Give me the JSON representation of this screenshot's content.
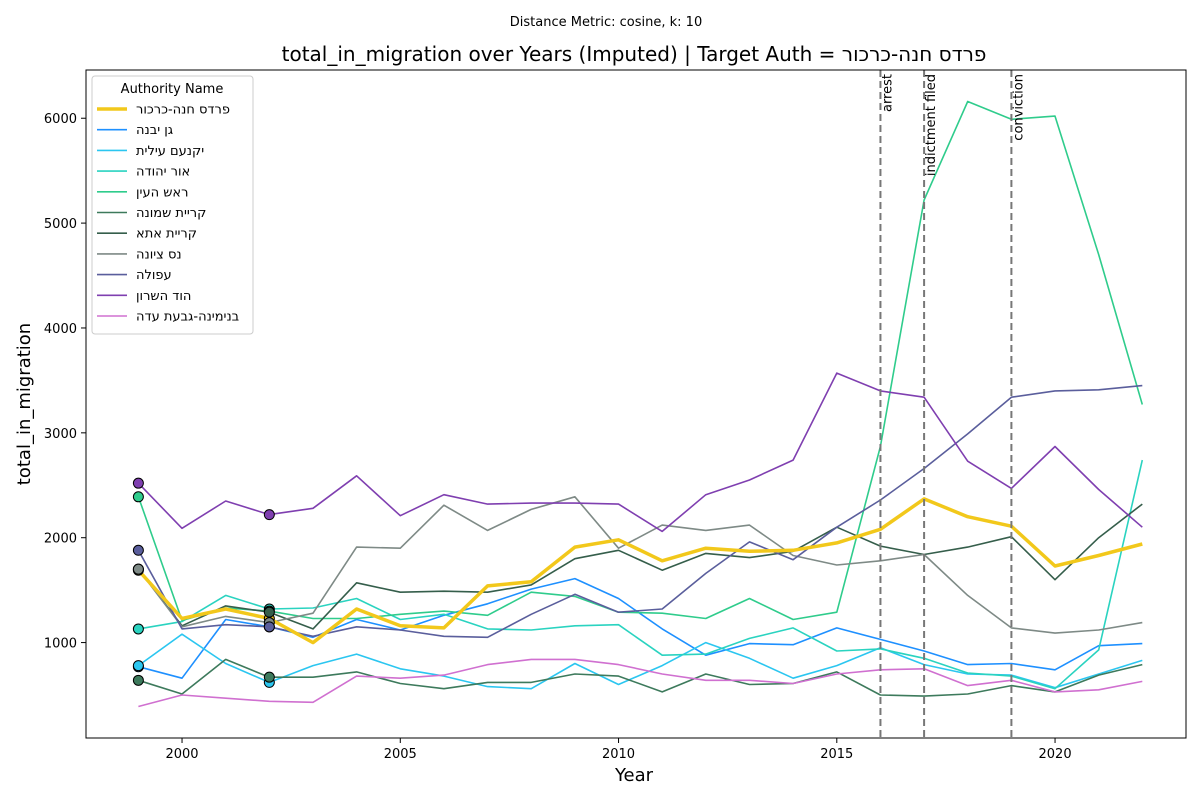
{
  "chart_data": {
    "type": "line",
    "suptitle": "Distance Metric: cosine, k: 10",
    "title": "total_in_migration over Years (Imputed) | Target Auth = פרדס חנה-כרכור",
    "xlabel": "Year",
    "ylabel": "total_in_migration",
    "xlim": [
      1997.8,
      2023.0
    ],
    "ylim": [
      90,
      6460
    ],
    "xticks": [
      2000,
      2005,
      2010,
      2015,
      2020
    ],
    "yticks": [
      1000,
      2000,
      3000,
      4000,
      5000,
      6000
    ],
    "legend_title": "Authority Name",
    "legend_position": "top-left",
    "events": [
      {
        "year": 2016,
        "label": "arrest"
      },
      {
        "year": 2017,
        "label": "indictment filed"
      },
      {
        "year": 2019,
        "label": "conviction"
      }
    ],
    "x": [
      1999,
      2000,
      2001,
      2002,
      2003,
      2004,
      2005,
      2006,
      2007,
      2008,
      2009,
      2010,
      2011,
      2012,
      2013,
      2014,
      2015,
      2016,
      2017,
      2018,
      2019,
      2020,
      2021,
      2022
    ],
    "series": [
      {
        "name": "פרדס חנה-כרכור",
        "color": "#f2c81b",
        "target": true,
        "imputed_years": [
          1999,
          2002
        ],
        "values": [
          1690,
          1230,
          1320,
          1230,
          1000,
          1320,
          1160,
          1140,
          1540,
          1580,
          1910,
          1980,
          1780,
          1900,
          1870,
          1880,
          1950,
          2080,
          2370,
          2200,
          2110,
          1730,
          1830,
          1940
        ]
      },
      {
        "name": "גן יבנה",
        "color": "#1e90ff",
        "target": false,
        "imputed_years": [
          1999,
          2002
        ],
        "values": [
          770,
          660,
          1220,
          1150,
          1050,
          1220,
          1120,
          1260,
          1370,
          1510,
          1610,
          1420,
          1130,
          880,
          990,
          980,
          1140,
          1030,
          920,
          790,
          800,
          740,
          970,
          990
        ]
      },
      {
        "name": "יקנעם עילית",
        "color": "#2bc6f0",
        "target": false,
        "imputed_years": [
          1999,
          2002
        ],
        "values": [
          780,
          1080,
          800,
          620,
          780,
          890,
          750,
          680,
          580,
          560,
          800,
          600,
          780,
          1000,
          850,
          660,
          780,
          950,
          790,
          700,
          690,
          570,
          700,
          830
        ]
      },
      {
        "name": "אור יהודה",
        "color": "#2ad3c0",
        "target": false,
        "imputed_years": [
          1999,
          2002
        ],
        "values": [
          1130,
          1200,
          1450,
          1320,
          1330,
          1420,
          1220,
          1270,
          1130,
          1120,
          1160,
          1170,
          880,
          890,
          1040,
          1140,
          920,
          940,
          850,
          710,
          680,
          560,
          930,
          2740
        ]
      },
      {
        "name": "ראש העין",
        "color": "#2fcc8c",
        "target": false,
        "imputed_years": [
          1999,
          2002
        ],
        "values": [
          2390,
          1210,
          1330,
          1300,
          1230,
          1230,
          1270,
          1300,
          1260,
          1480,
          1440,
          1290,
          1280,
          1230,
          1420,
          1220,
          1290,
          2870,
          5220,
          6160,
          5990,
          6020,
          4700,
          3270
        ]
      },
      {
        "name": "קריית שמונה",
        "color": "#3d7a5c",
        "target": false,
        "imputed_years": [
          1999,
          2002
        ],
        "values": [
          640,
          510,
          840,
          670,
          670,
          720,
          610,
          560,
          620,
          620,
          700,
          680,
          530,
          700,
          600,
          610,
          720,
          500,
          490,
          510,
          590,
          530,
          690,
          790
        ]
      },
      {
        "name": "קריית אתא",
        "color": "#355e4b",
        "target": false,
        "imputed_years": [
          1999,
          2002
        ],
        "values": [
          1700,
          1160,
          1350,
          1290,
          1130,
          1570,
          1480,
          1490,
          1480,
          1550,
          1800,
          1880,
          1690,
          1850,
          1810,
          1870,
          2100,
          1920,
          1840,
          1910,
          2010,
          1600,
          2000,
          2320
        ]
      },
      {
        "name": "נס ציונה",
        "color": "#7e8a86",
        "target": false,
        "imputed_years": [
          1999,
          2002
        ],
        "values": [
          1700,
          1150,
          1250,
          1190,
          1280,
          1910,
          1900,
          2310,
          2070,
          2270,
          2390,
          1900,
          2120,
          2070,
          2120,
          1830,
          1740,
          1780,
          1840,
          1450,
          1140,
          1090,
          1120,
          1190
        ]
      },
      {
        "name": "עפולה",
        "color": "#5a5e9c",
        "target": false,
        "imputed_years": [
          1999,
          2002
        ],
        "values": [
          1880,
          1130,
          1170,
          1150,
          1060,
          1150,
          1120,
          1060,
          1050,
          1270,
          1460,
          1290,
          1320,
          1660,
          1960,
          1790,
          2100,
          2360,
          2660,
          2990,
          3340,
          3400,
          3410,
          3450
        ]
      },
      {
        "name": "הוד השרון",
        "color": "#7f3fb0",
        "target": false,
        "imputed_years": [
          1999,
          2002
        ],
        "values": [
          2520,
          2090,
          2350,
          2220,
          2280,
          2590,
          2210,
          2410,
          2320,
          2330,
          2330,
          2320,
          2060,
          2410,
          2550,
          2740,
          3570,
          3400,
          3340,
          2730,
          2470,
          2870,
          2460,
          2100
        ]
      },
      {
        "name": "בנימינה-גבעת עדה",
        "color": "#d070d0",
        "target": false,
        "imputed_years": [],
        "values": [
          390,
          500,
          470,
          440,
          430,
          680,
          660,
          690,
          790,
          840,
          840,
          790,
          700,
          640,
          640,
          610,
          700,
          740,
          750,
          590,
          640,
          530,
          550,
          630
        ]
      }
    ]
  }
}
